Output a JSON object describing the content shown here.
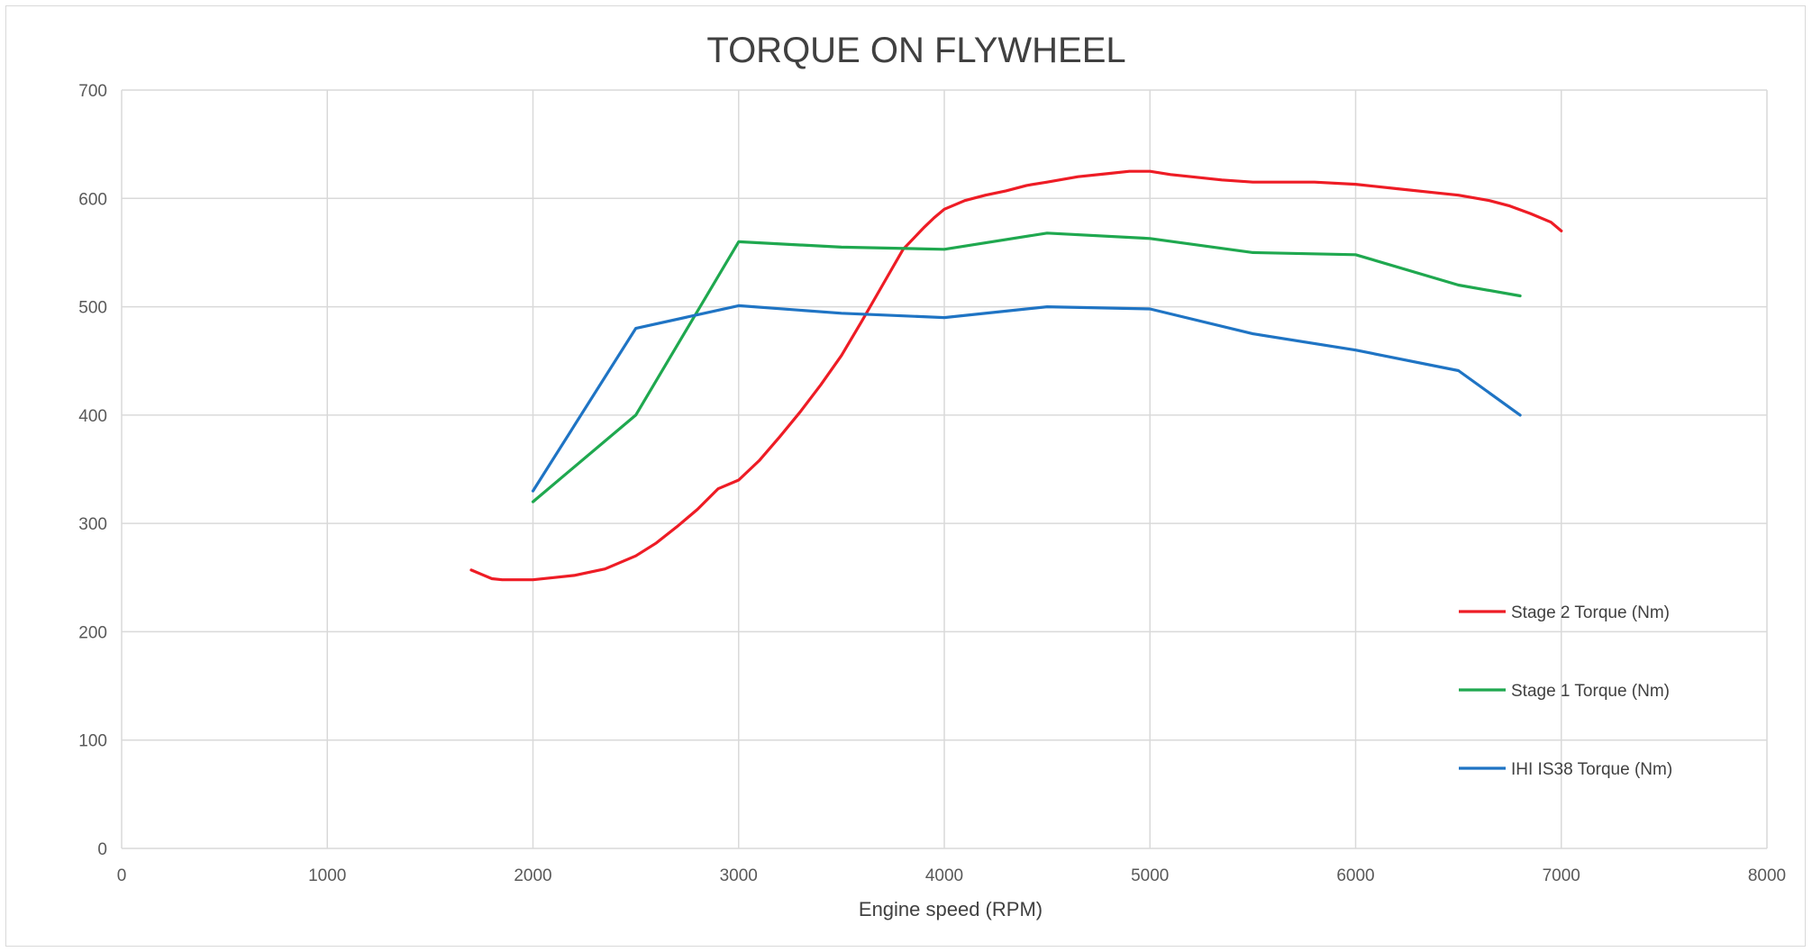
{
  "chart_data": {
    "type": "line",
    "title": "TORQUE ON FLYWHEEL",
    "xlabel": "Engine speed (RPM)",
    "ylabel": "",
    "xlim": [
      0,
      8000
    ],
    "ylim": [
      0,
      700
    ],
    "x_ticks": [
      "0",
      "1000",
      "2000",
      "3000",
      "4000",
      "5000",
      "6000",
      "7000",
      "8000"
    ],
    "y_ticks": [
      "0",
      "100",
      "200",
      "300",
      "400",
      "500",
      "600",
      "700"
    ],
    "grid": true,
    "legend_position": "right",
    "series": [
      {
        "name": "Stage 2 Torque (Nm)",
        "color": "#ee1c25",
        "points": [
          [
            1700,
            257
          ],
          [
            1750,
            253
          ],
          [
            1800,
            249
          ],
          [
            1850,
            248
          ],
          [
            1900,
            248
          ],
          [
            2000,
            248
          ],
          [
            2100,
            250
          ],
          [
            2200,
            252
          ],
          [
            2350,
            258
          ],
          [
            2500,
            270
          ],
          [
            2600,
            282
          ],
          [
            2700,
            297
          ],
          [
            2800,
            313
          ],
          [
            2900,
            332
          ],
          [
            3000,
            340
          ],
          [
            3100,
            358
          ],
          [
            3200,
            380
          ],
          [
            3300,
            403
          ],
          [
            3400,
            428
          ],
          [
            3500,
            455
          ],
          [
            3600,
            487
          ],
          [
            3700,
            520
          ],
          [
            3800,
            553
          ],
          [
            3900,
            573
          ],
          [
            3950,
            582
          ],
          [
            4000,
            590
          ],
          [
            4100,
            598
          ],
          [
            4200,
            603
          ],
          [
            4300,
            607
          ],
          [
            4400,
            612
          ],
          [
            4500,
            615
          ],
          [
            4650,
            620
          ],
          [
            4800,
            623
          ],
          [
            4900,
            625
          ],
          [
            5000,
            625
          ],
          [
            5100,
            622
          ],
          [
            5200,
            620
          ],
          [
            5350,
            617
          ],
          [
            5500,
            615
          ],
          [
            5650,
            615
          ],
          [
            5800,
            615
          ],
          [
            6000,
            613
          ],
          [
            6200,
            609
          ],
          [
            6400,
            605
          ],
          [
            6500,
            603
          ],
          [
            6650,
            598
          ],
          [
            6750,
            593
          ],
          [
            6850,
            586
          ],
          [
            6950,
            578
          ],
          [
            7000,
            570
          ]
        ]
      },
      {
        "name": "Stage 1 Torque (Nm)",
        "color": "#1fa84f",
        "points": [
          [
            2000,
            320
          ],
          [
            2500,
            400
          ],
          [
            3000,
            560
          ],
          [
            3500,
            555
          ],
          [
            4000,
            553
          ],
          [
            4500,
            568
          ],
          [
            5000,
            563
          ],
          [
            5500,
            550
          ],
          [
            6000,
            548
          ],
          [
            6500,
            520
          ],
          [
            6800,
            510
          ]
        ]
      },
      {
        "name": "IHI IS38 Torque (Nm)",
        "color": "#1f74c4",
        "points": [
          [
            2000,
            330
          ],
          [
            2500,
            480
          ],
          [
            3000,
            501
          ],
          [
            3500,
            494
          ],
          [
            4000,
            490
          ],
          [
            4500,
            500
          ],
          [
            5000,
            498
          ],
          [
            5500,
            475
          ],
          [
            6000,
            460
          ],
          [
            6500,
            441
          ],
          [
            6800,
            400
          ]
        ]
      }
    ]
  }
}
